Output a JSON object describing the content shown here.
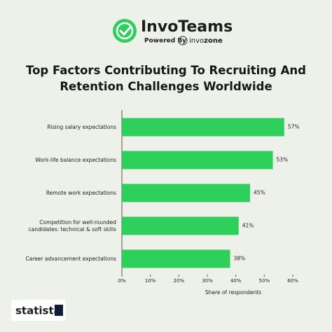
{
  "branding": {
    "name": "InvoTeams",
    "powered_by": "Powered By",
    "partner_light": "invo",
    "partner_bold": "zone"
  },
  "source": "statista",
  "chart_data": {
    "type": "bar",
    "orientation": "horizontal",
    "title": "Top Factors Contributing To Recruiting And Retention Challenges Worldwide",
    "categories": [
      "Rising salary expectations",
      "Work-life balance expectations",
      "Remote work expectations",
      "Competition for well-rounded\ncandidates: technical & soft skills",
      "Career advancement expectations"
    ],
    "values": [
      57,
      53,
      45,
      41,
      38
    ],
    "value_labels": [
      "57%",
      "53%",
      "45%",
      "41%",
      "38%"
    ],
    "color": "#2fcf5c",
    "xlim": [
      0,
      60
    ],
    "xticks": [
      {
        "value": 0,
        "label": "0%"
      },
      {
        "value": 10,
        "label": "10%"
      },
      {
        "value": 20,
        "label": "20%"
      },
      {
        "value": 30,
        "label": "30%"
      },
      {
        "value": 40,
        "label": "40%"
      },
      {
        "value": 50,
        "label": "50%"
      },
      {
        "value": 60,
        "label": "60%"
      }
    ],
    "xlabel": "Share of respondents"
  }
}
